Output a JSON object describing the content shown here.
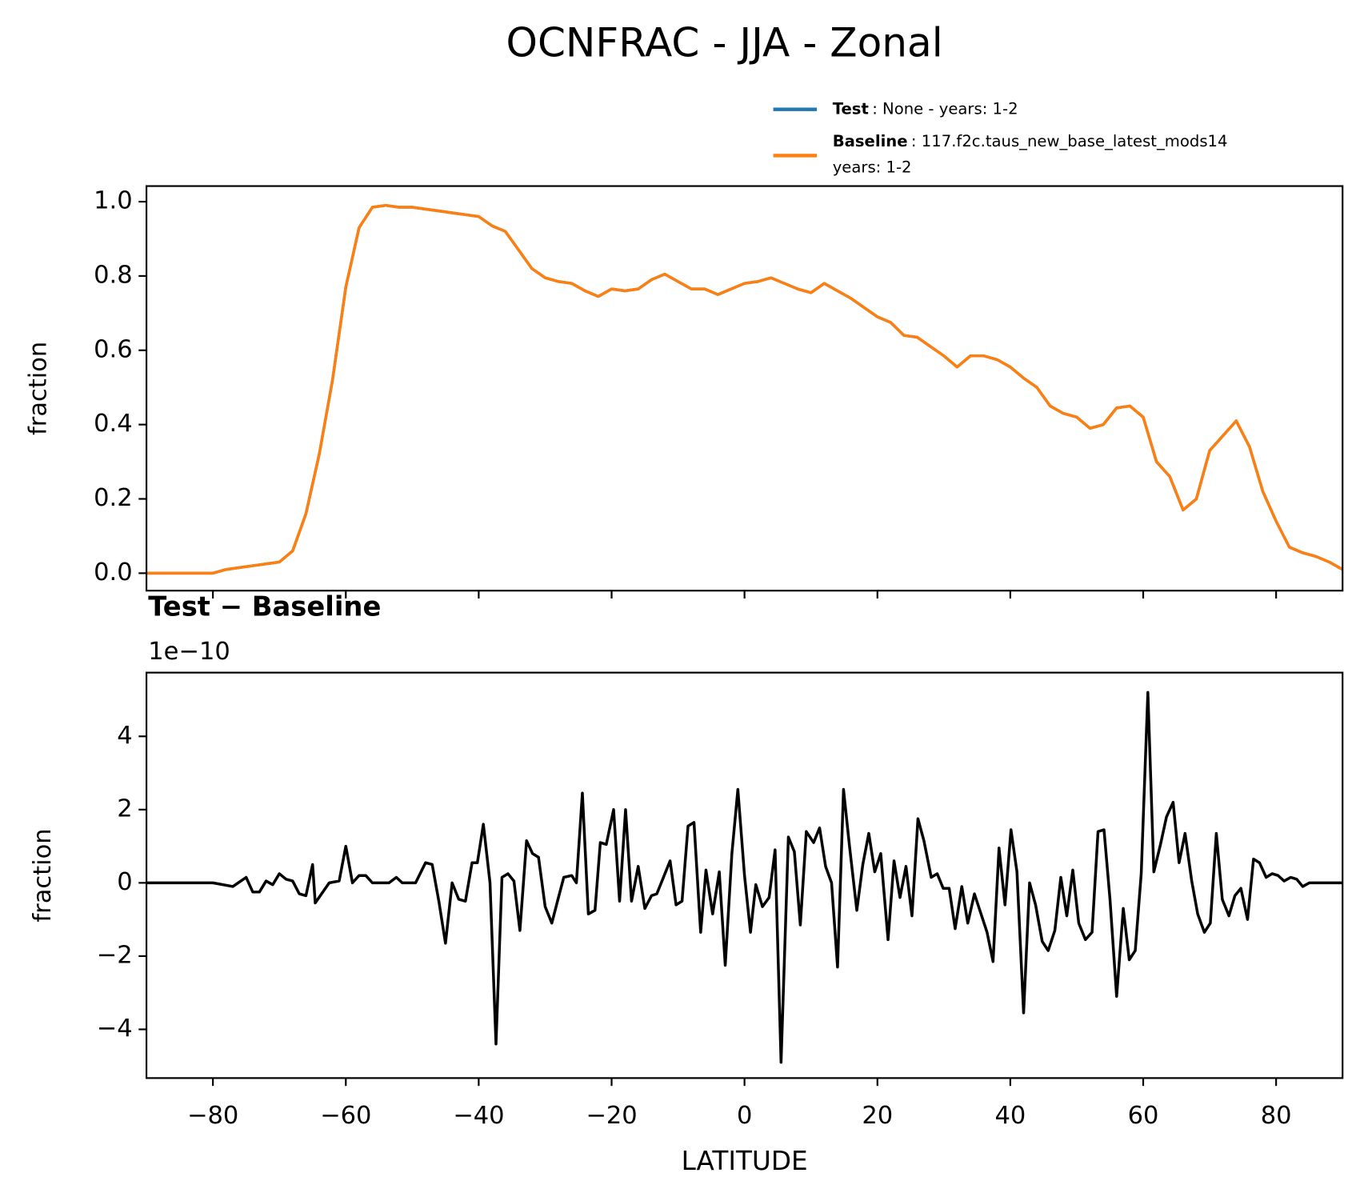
{
  "chart_data": [
    {
      "type": "line",
      "title": "OCNFRAC - JJA - Zonal",
      "ylabel": "fraction",
      "xlim": [
        -90,
        90
      ],
      "ylim": [
        -0.047,
        1.042
      ],
      "xticks": [
        {
          "value": -80,
          "label": "−80"
        },
        {
          "value": -60,
          "label": "−60"
        },
        {
          "value": -40,
          "label": "−40"
        },
        {
          "value": -20,
          "label": "−20"
        },
        0,
        20,
        40,
        60,
        80
      ],
      "yticks": [
        {
          "value": 0,
          "label": "0.0"
        },
        0.2,
        0.4,
        0.6,
        0.8,
        {
          "value": 1,
          "label": "1.0"
        }
      ],
      "x": [
        -90,
        -88,
        -86,
        -84,
        -82,
        -80,
        -78,
        -76,
        -74,
        -72,
        -70,
        -68,
        -66,
        -64,
        -62,
        -60,
        -58,
        -56,
        -54,
        -52,
        -50,
        -48,
        -46,
        -44,
        -42,
        -40,
        -38,
        -36,
        -34,
        -32,
        -30,
        -28,
        -26,
        -24,
        -22,
        -20,
        -18,
        -16,
        -14,
        -12,
        -10,
        -8,
        -6,
        -4,
        -2,
        0,
        2,
        4,
        6,
        8,
        10,
        12,
        14,
        16,
        18,
        20,
        22,
        24,
        26,
        28,
        30,
        32,
        34,
        36,
        38,
        40,
        42,
        44,
        46,
        48,
        50,
        52,
        54,
        56,
        58,
        60,
        62,
        64,
        66,
        68,
        70,
        72,
        74,
        76,
        78,
        80,
        82,
        84,
        86,
        88,
        90
      ],
      "series": [
        {
          "name": "Test",
          "legend_text": [
            ": None - years: 1-2"
          ],
          "color": "#1f77b4",
          "values": [
            0,
            0,
            0,
            0,
            0,
            0,
            0.01,
            0.015,
            0.02,
            0.025,
            0.03,
            0.06,
            0.16,
            0.32,
            0.52,
            0.77,
            0.93,
            0.985,
            0.99,
            0.985,
            0.985,
            0.98,
            0.975,
            0.97,
            0.965,
            0.96,
            0.935,
            0.92,
            0.87,
            0.82,
            0.795,
            0.785,
            0.78,
            0.76,
            0.745,
            0.765,
            0.76,
            0.765,
            0.79,
            0.805,
            0.785,
            0.765,
            0.765,
            0.75,
            0.765,
            0.78,
            0.785,
            0.795,
            0.78,
            0.765,
            0.755,
            0.78,
            0.76,
            0.74,
            0.715,
            0.69,
            0.675,
            0.64,
            0.635,
            0.61,
            0.585,
            0.555,
            0.585,
            0.585,
            0.575,
            0.555,
            0.525,
            0.5,
            0.45,
            0.43,
            0.42,
            0.39,
            0.4,
            0.445,
            0.45,
            0.42,
            0.3,
            0.26,
            0.17,
            0.2,
            0.33,
            0.37,
            0.41,
            0.34,
            0.22,
            0.14,
            0.07,
            0.055,
            0.045,
            0.03,
            0.01
          ]
        },
        {
          "name": "Baseline",
          "legend_text": [
            ": 117.f2c.taus_new_base_latest_mods14",
            "years: 1-2"
          ],
          "color": "#ff7f0e",
          "values": [
            0,
            0,
            0,
            0,
            0,
            0,
            0.01,
            0.015,
            0.02,
            0.025,
            0.03,
            0.06,
            0.16,
            0.32,
            0.52,
            0.77,
            0.93,
            0.985,
            0.99,
            0.985,
            0.985,
            0.98,
            0.975,
            0.97,
            0.965,
            0.96,
            0.935,
            0.92,
            0.87,
            0.82,
            0.795,
            0.785,
            0.78,
            0.76,
            0.745,
            0.765,
            0.76,
            0.765,
            0.79,
            0.805,
            0.785,
            0.765,
            0.765,
            0.75,
            0.765,
            0.78,
            0.785,
            0.795,
            0.78,
            0.765,
            0.755,
            0.78,
            0.76,
            0.74,
            0.715,
            0.69,
            0.675,
            0.64,
            0.635,
            0.61,
            0.585,
            0.555,
            0.585,
            0.585,
            0.575,
            0.555,
            0.525,
            0.5,
            0.45,
            0.43,
            0.42,
            0.39,
            0.4,
            0.445,
            0.45,
            0.42,
            0.3,
            0.26,
            0.17,
            0.2,
            0.33,
            0.37,
            0.41,
            0.34,
            0.22,
            0.14,
            0.07,
            0.055,
            0.045,
            0.03,
            0.01
          ]
        }
      ]
    },
    {
      "type": "line",
      "title": "Test − Baseline",
      "offset_label": "1e−10",
      "ylabel": "fraction",
      "xlabel": "LATITUDE",
      "xlim": [
        -90,
        90
      ],
      "ylim": [
        -5.33,
        5.74
      ],
      "xticks": [
        {
          "value": -80,
          "label": "−80"
        },
        {
          "value": -60,
          "label": "−60"
        },
        {
          "value": -40,
          "label": "−40"
        },
        {
          "value": -20,
          "label": "−20"
        },
        0,
        20,
        40,
        60,
        80
      ],
      "yticks": [
        {
          "value": -4,
          "label": "−4"
        },
        {
          "value": -2,
          "label": "−2"
        },
        0,
        2,
        4
      ],
      "color": "#000000",
      "x": [
        -90,
        -80,
        -77,
        -75,
        -74,
        -73,
        -72,
        -71,
        -70,
        -69,
        -68,
        -67,
        -66,
        -65,
        -64.6,
        -62.5,
        -61,
        -60,
        -59,
        -58,
        -57,
        -56,
        -53.5,
        -52.4,
        -51.5,
        -49.5,
        -48,
        -47,
        -46,
        -45,
        -44,
        -43,
        -42,
        -41,
        -40.2,
        -39.3,
        -38.3,
        -37.4,
        -36.5,
        -35.6,
        -34.7,
        -33.8,
        -32.8,
        -31.9,
        -31,
        -30,
        -29,
        -28,
        -27.2,
        -26,
        -25.3,
        -24.4,
        -23.5,
        -22.5,
        -21.7,
        -20.8,
        -19.7,
        -18.8,
        -17.9,
        -17,
        -16,
        -15,
        -14,
        -13.2,
        -11.2,
        -10.3,
        -9.4,
        -8.5,
        -7.6,
        -6.6,
        -5.8,
        -4.8,
        -3.8,
        -2.9,
        -1.9,
        -1,
        0,
        0.9,
        1.7,
        2.7,
        3.7,
        4.6,
        5.5,
        6.6,
        7.5,
        8.4,
        9.3,
        10.4,
        11.3,
        12.2,
        13.1,
        14,
        14.9,
        15.8,
        16.9,
        17.8,
        18.7,
        19.6,
        20.5,
        21.6,
        22.5,
        23.4,
        24.3,
        25.2,
        26.1,
        27,
        28.1,
        29,
        29.9,
        30.8,
        31.7,
        32.7,
        33.6,
        34.6,
        36.5,
        37.4,
        38.3,
        39.2,
        40.1,
        41,
        42,
        42.9,
        43.8,
        44.8,
        45.7,
        46.7,
        47.6,
        48.5,
        49.4,
        50.3,
        51.3,
        52.3,
        53.2,
        54.1,
        55,
        56,
        57,
        57.9,
        58.8,
        59.7,
        60.7,
        61.6,
        62.6,
        63.5,
        64.5,
        65.4,
        66.3,
        67.3,
        68.2,
        69.2,
        70.1,
        71,
        71.9,
        72.9,
        73.8,
        74.7,
        75.7,
        76.6,
        77.5,
        78.5,
        79.4,
        80.3,
        81.2,
        82.2,
        83.1,
        84,
        85,
        90
      ],
      "values": [
        0,
        0,
        -0.1,
        0.15,
        -0.25,
        -0.25,
        0.05,
        -0.05,
        0.25,
        0.1,
        0.05,
        -0.3,
        -0.35,
        0.5,
        -0.55,
        0,
        0.05,
        1,
        0,
        0.2,
        0.2,
        0,
        0,
        0.15,
        0,
        0,
        0.55,
        0.5,
        -0.5,
        -1.65,
        0,
        -0.45,
        -0.5,
        0.55,
        0.55,
        1.6,
        0,
        -4.4,
        0.15,
        0.25,
        0.05,
        -1.3,
        1.15,
        0.8,
        0.7,
        -0.65,
        -1.1,
        -0.4,
        0.15,
        0.2,
        0,
        2.45,
        -0.85,
        -0.75,
        1.1,
        1.05,
        2,
        -0.5,
        2,
        -0.5,
        0.45,
        -0.7,
        -0.35,
        -0.3,
        0.6,
        -0.6,
        -0.5,
        1.55,
        1.65,
        -1.35,
        0.35,
        -0.85,
        0.3,
        -2.25,
        0.8,
        2.55,
        0.2,
        -1.35,
        -0.05,
        -0.65,
        -0.4,
        0.9,
        -4.9,
        1.25,
        0.85,
        -1.15,
        1.4,
        1.1,
        1.5,
        0.45,
        0,
        -2.3,
        2.55,
        1,
        -0.75,
        0.5,
        1.35,
        0.3,
        0.8,
        -1.55,
        0.6,
        -0.4,
        0.45,
        -0.9,
        1.75,
        1.15,
        0.15,
        0.25,
        -0.15,
        -0.15,
        -1.25,
        -0.1,
        -1.1,
        -0.3,
        -1.35,
        -2.15,
        0.95,
        -0.6,
        1.45,
        0.3,
        -3.55,
        0,
        -0.6,
        -1.6,
        -1.85,
        -1.3,
        0.15,
        -0.9,
        0.35,
        -1.1,
        -1.55,
        -1.35,
        1.4,
        1.45,
        -0.45,
        -3.1,
        -0.7,
        -2.1,
        -1.85,
        0.25,
        5.2,
        0.3,
        1.05,
        1.8,
        2.2,
        0.55,
        1.35,
        0.05,
        -0.85,
        -1.35,
        -1.1,
        1.35,
        -0.45,
        -0.9,
        -0.35,
        -0.15,
        -1,
        0.65,
        0.55,
        0.15,
        0.25,
        0.2,
        0.05,
        0.15,
        0.1,
        -0.1,
        0,
        0
      ]
    }
  ]
}
